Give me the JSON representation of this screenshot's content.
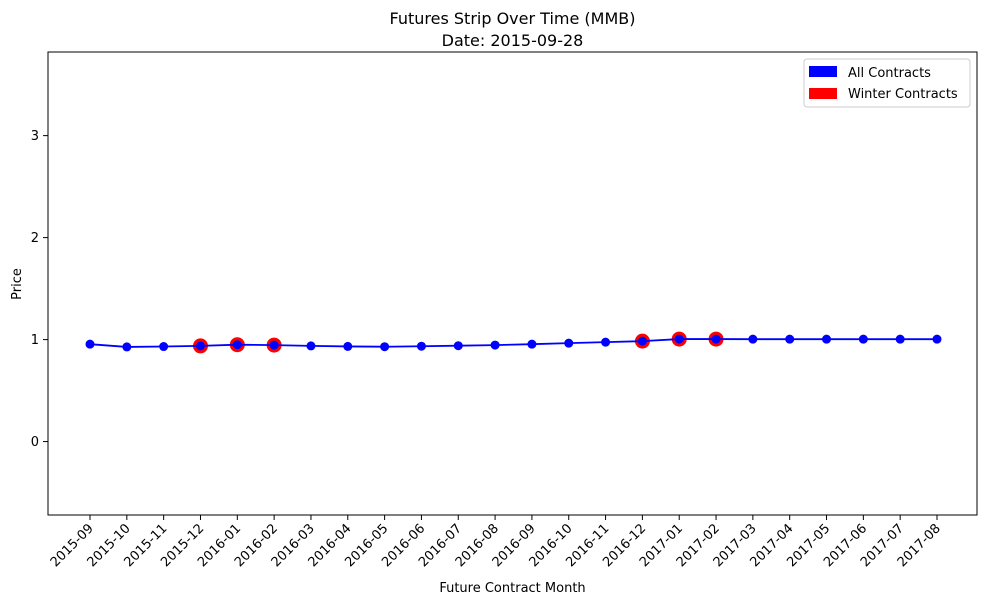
{
  "chart_data": {
    "type": "line",
    "title": "Futures Strip Over Time (MMB)",
    "subtitle": "Date: 2015-09-28",
    "xlabel": "Future Contract Month",
    "ylabel": "Price",
    "ylim": [
      -0.72,
      3.82
    ],
    "yticks": [
      "0",
      "1",
      "2",
      "3"
    ],
    "grid": false,
    "legend_position": "top-right",
    "x": [
      "2015-09",
      "2015-10",
      "2015-11",
      "2015-12",
      "2016-01",
      "2016-02",
      "2016-03",
      "2016-04",
      "2016-05",
      "2016-06",
      "2016-07",
      "2016-08",
      "2016-09",
      "2016-10",
      "2016-11",
      "2016-12",
      "2017-01",
      "2017-02",
      "2017-03",
      "2017-04",
      "2017-05",
      "2017-06",
      "2017-07",
      "2017-08"
    ],
    "series": [
      {
        "name": "All Contracts",
        "color": "#0000ff",
        "values": [
          0.955,
          0.928,
          0.932,
          0.938,
          0.95,
          0.946,
          0.938,
          0.933,
          0.93,
          0.935,
          0.94,
          0.946,
          0.955,
          0.965,
          0.975,
          0.985,
          1.005,
          1.005,
          1.004,
          1.004,
          1.004,
          1.004,
          1.004,
          1.004
        ]
      },
      {
        "name": "Winter Contracts",
        "color": "#ff0000",
        "x": [
          "2015-12",
          "2016-01",
          "2016-02",
          "2016-12",
          "2017-01",
          "2017-02"
        ],
        "values": [
          0.938,
          0.95,
          0.946,
          0.985,
          1.005,
          1.005
        ]
      }
    ]
  }
}
